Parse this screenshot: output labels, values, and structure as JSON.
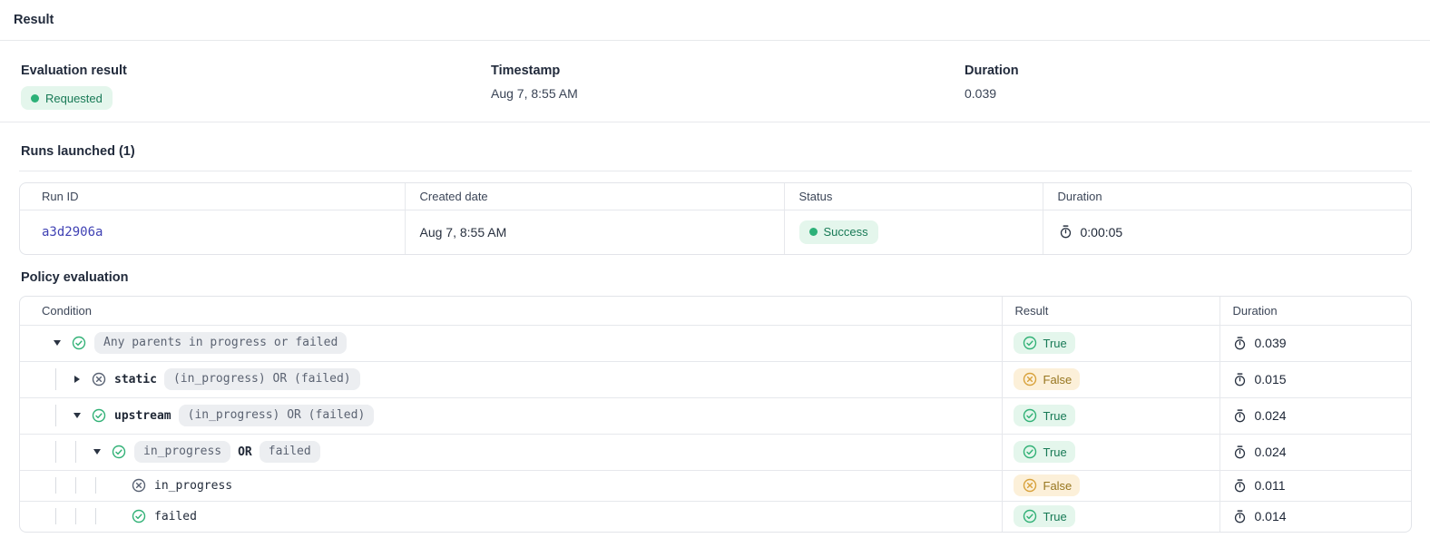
{
  "page": {
    "title": "Result"
  },
  "summary": {
    "evaluation_result": {
      "label": "Evaluation result",
      "badge": "Requested"
    },
    "timestamp": {
      "label": "Timestamp",
      "value": "Aug 7, 8:55 AM"
    },
    "duration": {
      "label": "Duration",
      "value": "0.039"
    }
  },
  "runs": {
    "heading": "Runs launched (1)",
    "columns": [
      "Run ID",
      "Created date",
      "Status",
      "Duration"
    ],
    "rows": [
      {
        "run_id": "a3d2906a",
        "created": "Aug 7, 8:55 AM",
        "status": "Success",
        "duration": "0:00:05"
      }
    ]
  },
  "policy": {
    "heading": "Policy evaluation",
    "columns": [
      "Condition",
      "Result",
      "Duration"
    ],
    "rows": [
      {
        "depth": 0,
        "caret": "down",
        "icon": "check-circle",
        "segments": [
          {
            "type": "pill",
            "text": "Any parents in progress or failed"
          }
        ],
        "result": "True",
        "duration": "0.039"
      },
      {
        "depth": 1,
        "caret": "right",
        "icon": "x-circle",
        "segments": [
          {
            "type": "bold",
            "text": "static"
          },
          {
            "type": "pill",
            "text": "(in_progress) OR (failed)"
          }
        ],
        "result": "False",
        "duration": "0.015"
      },
      {
        "depth": 1,
        "caret": "down",
        "icon": "check-circle",
        "segments": [
          {
            "type": "bold",
            "text": "upstream"
          },
          {
            "type": "pill",
            "text": "(in_progress) OR (failed)"
          }
        ],
        "result": "True",
        "duration": "0.024"
      },
      {
        "depth": 2,
        "caret": "down",
        "icon": "check-circle",
        "segments": [
          {
            "type": "pill",
            "text": "in_progress"
          },
          {
            "type": "bold",
            "text": "OR"
          },
          {
            "type": "pill",
            "text": "failed"
          }
        ],
        "result": "True",
        "duration": "0.024"
      },
      {
        "depth": 3,
        "caret": "none",
        "icon": "x-circle",
        "segments": [
          {
            "type": "plain",
            "text": "in_progress"
          }
        ],
        "result": "False",
        "duration": "0.011"
      },
      {
        "depth": 3,
        "caret": "none",
        "icon": "check-circle",
        "segments": [
          {
            "type": "plain",
            "text": "failed"
          }
        ],
        "result": "True",
        "duration": "0.014"
      }
    ]
  },
  "icons": {
    "duration": "stopwatch",
    "true_result": "check-circle",
    "false_result": "x-circle",
    "status_indicator": "dot"
  },
  "colors": {
    "accent_green": "#2cb178",
    "badge_green_bg": "#e4f6ec",
    "badge_green_text": "#187a56",
    "badge_amber_bg": "#fcf0d9",
    "badge_amber_text": "#97761f",
    "amber_icon": "#d8a23c",
    "gray_icon": "#596273",
    "link": "#4042b4",
    "pill_bg": "#eceef1",
    "border": "#e2e4e9"
  }
}
